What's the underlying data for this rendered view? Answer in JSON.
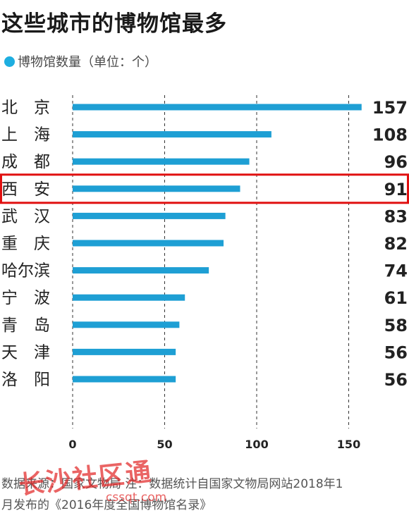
{
  "title": "这些城市的博物馆最多",
  "legend": {
    "label": "博物馆数量（单位：个）"
  },
  "footer": {
    "line1": "数据来源：国家文物局  注：数据统计自国家文物局网站2018年1",
    "line2": "月发布的《2016年度全国博物馆名录》"
  },
  "watermark": {
    "text": "长沙社区通",
    "url": "cssqt.com"
  },
  "colors": {
    "bar": "#1e9fd4",
    "highlight": "#e01010",
    "legend_dot": "#1eaee0"
  },
  "chart_data": {
    "type": "bar",
    "orientation": "horizontal",
    "title": "这些城市的博物馆最多",
    "categories": [
      "北　京",
      "上　海",
      "成　都",
      "西　安",
      "武　汉",
      "重　庆",
      "哈尔滨",
      "宁　波",
      "青　岛",
      "天　津",
      "洛　阳"
    ],
    "values": [
      157,
      108,
      96,
      91,
      83,
      82,
      74,
      61,
      58,
      56,
      56
    ],
    "series": [
      {
        "name": "博物馆数量（单位：个）",
        "values": [
          157,
          108,
          96,
          91,
          83,
          82,
          74,
          61,
          58,
          56,
          56
        ]
      }
    ],
    "xticks": [
      0,
      50,
      100,
      150
    ],
    "xlim": [
      0,
      160
    ],
    "grid": true,
    "highlight": "西　安"
  }
}
